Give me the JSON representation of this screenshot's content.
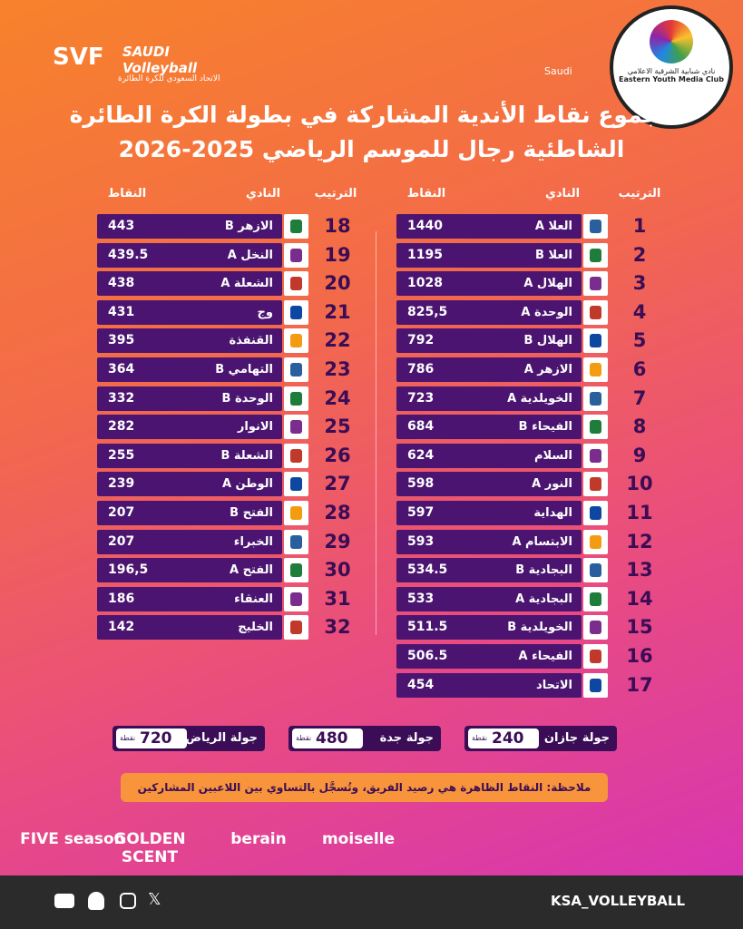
{
  "header": {
    "logo": "SVF",
    "brand": "SAUDI Volleyball",
    "federation": "الاتحاد السعودي للكرة الطائرة",
    "saudi": "Saudi",
    "club_ar": "نادي شبابية الشرقية الاعلامي",
    "club_en": "Eastern Youth Media Club"
  },
  "title": [
    "مجموع نقاط الأندية المشاركة في بطولة الكرة الطائرة",
    "الشاطئية رجال للموسم الرياضي 2025-2026"
  ],
  "columns": [
    "الترتيب",
    "النادي",
    "النقاط"
  ],
  "tables": [
    {
      "rows": [
        [
          1,
          "العلا A",
          1440
        ],
        [
          2,
          "العلا B",
          1195
        ],
        [
          3,
          "الهلال A",
          1028
        ],
        [
          4,
          "الوحدة A",
          "825,5"
        ],
        [
          5,
          "الهلال B",
          792
        ],
        [
          6,
          "الازهر A",
          786
        ],
        [
          7,
          "الخويلدية A",
          723
        ],
        [
          8,
          "الفيحاء B",
          684
        ],
        [
          9,
          "السلام",
          624
        ],
        [
          10,
          "النور A",
          598
        ],
        [
          11,
          "الهداية",
          597
        ],
        [
          12,
          "الابتسام A",
          593
        ],
        [
          13,
          "البجادية B",
          534.5
        ],
        [
          14,
          "البجادية A",
          533
        ],
        [
          15,
          "الخويلدية B",
          511.5
        ],
        [
          16,
          "الفيحاء A",
          506.5
        ],
        [
          17,
          "الاتحاد",
          454
        ]
      ]
    },
    {
      "rows": [
        [
          18,
          "الازهر B",
          443
        ],
        [
          19,
          "النخل A",
          439.5
        ],
        [
          20,
          "الشعلة A",
          438
        ],
        [
          21,
          "وج",
          431
        ],
        [
          22,
          "القنفذة",
          395
        ],
        [
          23,
          "التهامي B",
          364
        ],
        [
          24,
          "الوحدة B",
          332
        ],
        [
          25,
          "الانوار",
          282
        ],
        [
          26,
          "الشعلة B",
          255
        ],
        [
          27,
          "الوطن A",
          239
        ],
        [
          28,
          "الفتح B",
          207
        ],
        [
          29,
          "الخبراء",
          207
        ],
        [
          30,
          "الفتح A",
          "196,5"
        ],
        [
          31,
          "العنقاء",
          186
        ],
        [
          32,
          "الخليج",
          142
        ]
      ]
    }
  ],
  "tours": [
    {
      "name": "جولة جازان",
      "points": 240,
      "unit": "نقطة"
    },
    {
      "name": "جولة جدة",
      "points": 480,
      "unit": "نقطة"
    },
    {
      "name": "جولة الرياض",
      "points": 720,
      "unit": "نقطة"
    }
  ],
  "note": "ملاحظة: النقاط الظاهرة هي رصيد الفريق، وتُسجَّل بالتساوي بين اللاعبين المشاركين",
  "sponsors": [
    "FIVE season",
    "GOLDEN SCENT",
    "berain",
    "moiselle"
  ],
  "footer": {
    "handle": "KSA_VOLLEYBALL"
  }
}
